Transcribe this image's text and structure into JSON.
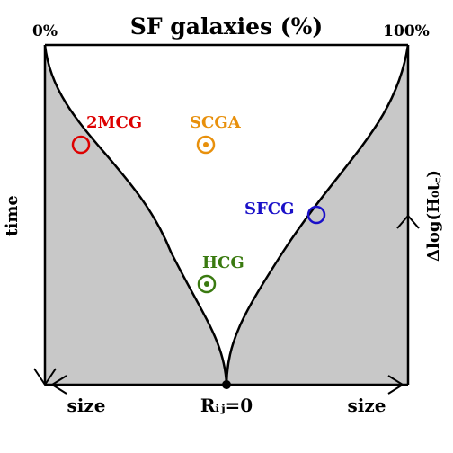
{
  "title": "SF galaxies (%)",
  "top_left_label": "0%",
  "top_right_label": "100%",
  "left_axis_label": "time",
  "right_axis_label": "Δlog(H₀t꜀)",
  "bottom_left_label": "size",
  "bottom_center_label": "Rᵢⱼ=0",
  "bottom_right_label": "size",
  "markers": [
    {
      "label": "2MCG",
      "color": "#dd0000",
      "filled_center": false
    },
    {
      "label": "SCGA",
      "color": "#e8900c",
      "filled_center": true
    },
    {
      "label": "SFCG",
      "color": "#1a10c8",
      "filled_center": false
    },
    {
      "label": "HCG",
      "color": "#3a7a10",
      "filled_center": true
    }
  ],
  "colors": {
    "region_fill": "#c8c8c8",
    "line": "#000000"
  }
}
